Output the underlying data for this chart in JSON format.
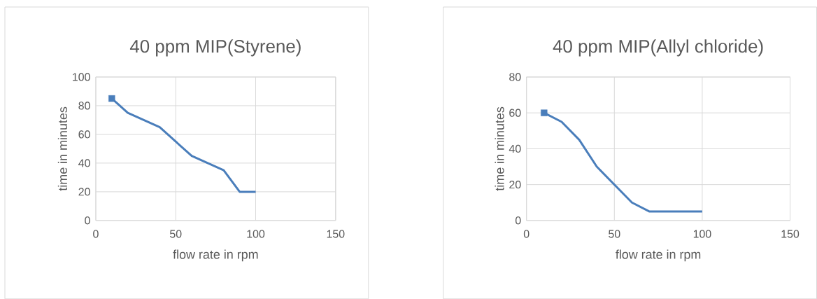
{
  "chart_data": [
    {
      "type": "line",
      "title": "40 ppm MIP(Styrene)",
      "xlabel": "flow rate in rpm",
      "ylabel": "time in minutes",
      "xlim": [
        0,
        150
      ],
      "xticks": [
        0,
        50,
        100,
        150
      ],
      "ylim": [
        0,
        100
      ],
      "yticks": [
        0,
        20,
        40,
        60,
        80,
        100
      ],
      "grid": true,
      "series": [
        {
          "color": "#4a7ebb",
          "x": [
            10,
            20,
            30,
            40,
            50,
            60,
            70,
            80,
            90,
            100
          ],
          "values": [
            85,
            75,
            70,
            65,
            55,
            45,
            40,
            35,
            20,
            20
          ]
        },
        {
          "type": "scatter",
          "marker": "square",
          "color": "#4a7ebb",
          "x": [
            10
          ],
          "values": [
            85
          ]
        }
      ]
    },
    {
      "type": "line",
      "title": "40 ppm MIP(Allyl chloride)",
      "xlabel": "flow rate in rpm",
      "ylabel": "time in minutes",
      "xlim": [
        0,
        150
      ],
      "xticks": [
        0,
        50,
        100,
        150
      ],
      "ylim": [
        0,
        80
      ],
      "yticks": [
        0,
        20,
        40,
        60,
        80
      ],
      "grid": true,
      "series": [
        {
          "color": "#4a7ebb",
          "x": [
            10,
            20,
            30,
            40,
            50,
            60,
            70,
            80,
            90,
            100
          ],
          "values": [
            60,
            55,
            45,
            30,
            20,
            10,
            5,
            5,
            5,
            5
          ]
        },
        {
          "type": "scatter",
          "marker": "square",
          "color": "#4a7ebb",
          "x": [
            10
          ],
          "values": [
            60
          ]
        }
      ]
    }
  ]
}
